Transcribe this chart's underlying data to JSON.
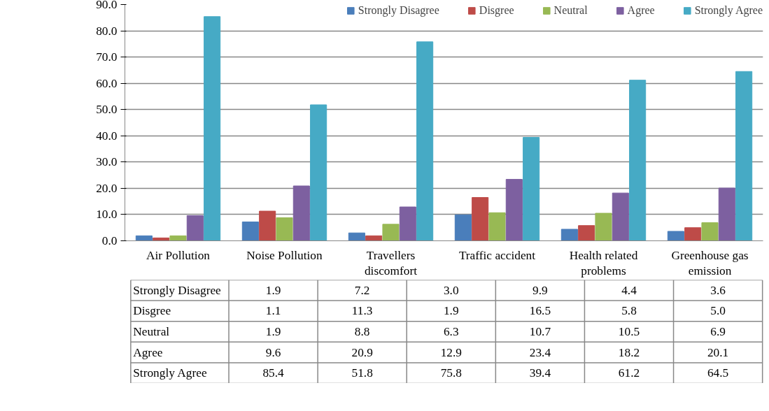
{
  "chart_data": {
    "type": "bar",
    "categories": [
      "Air Pollution",
      "Noise Pollution",
      "Travellers discomfort",
      "Traffic accident",
      "Health related problems",
      "Greenhouse gas emission"
    ],
    "series": [
      {
        "name": "Strongly Disagree",
        "color": "#4a7ebb",
        "values": [
          1.9,
          7.2,
          3.0,
          9.9,
          4.4,
          3.6
        ]
      },
      {
        "name": "Disgree",
        "color": "#be4b48",
        "values": [
          1.1,
          11.3,
          1.9,
          16.5,
          5.8,
          5.0
        ]
      },
      {
        "name": "Neutral",
        "color": "#98b954",
        "values": [
          1.9,
          8.8,
          6.3,
          10.7,
          10.5,
          6.9
        ]
      },
      {
        "name": "Agree",
        "color": "#7d60a0",
        "values": [
          9.6,
          20.9,
          12.9,
          23.4,
          18.2,
          20.1
        ]
      },
      {
        "name": "Strongly Agree",
        "color": "#46aac5",
        "values": [
          85.4,
          51.8,
          75.8,
          39.4,
          61.2,
          64.5
        ]
      }
    ],
    "value_labels": [
      [
        "1.9",
        "7.2",
        "3.0",
        "9.9",
        "4.4",
        "3.6"
      ],
      [
        "1.1",
        "11.3",
        "1.9",
        "16.5",
        "5.8",
        "5.0"
      ],
      [
        "1.9",
        "8.8",
        "6.3",
        "10.7",
        "10.5",
        "6.9"
      ],
      [
        "9.6",
        "20.9",
        "12.9",
        "23.4",
        "18.2",
        "20.1"
      ],
      [
        "85.4",
        "51.8",
        "75.8",
        "39.4",
        "61.2",
        "64.5"
      ]
    ],
    "ylim": [
      0,
      90
    ],
    "yticks": [
      {
        "value": 0,
        "label": "0.0"
      },
      {
        "value": 10,
        "label": "10.0"
      },
      {
        "value": 20,
        "label": "20.0"
      },
      {
        "value": 30,
        "label": "30.0"
      },
      {
        "value": 40,
        "label": "40.0"
      },
      {
        "value": 50,
        "label": "50.0"
      },
      {
        "value": 60,
        "label": "60.0"
      },
      {
        "value": 70,
        "label": "70.0"
      },
      {
        "value": 80,
        "label": "80.0"
      },
      {
        "value": 90,
        "label": "90.0"
      }
    ],
    "grid": "y",
    "legend": "top"
  }
}
